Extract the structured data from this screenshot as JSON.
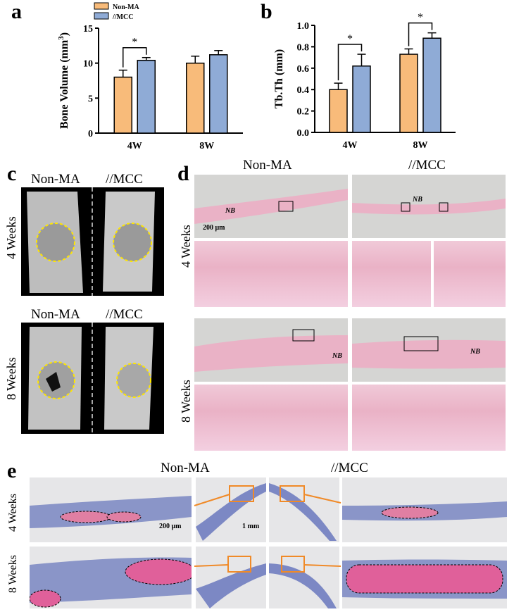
{
  "panels": {
    "a": "a",
    "b": "b",
    "c": "c",
    "d": "d",
    "e": "e"
  },
  "chart_data": [
    {
      "type": "bar",
      "panel": "a",
      "categories": [
        "4W",
        "8W"
      ],
      "series": [
        {
          "name": "Non-MA",
          "values": [
            8.0,
            10.0
          ],
          "errors": [
            1.0,
            1.0
          ],
          "color": "#f8bb7a"
        },
        {
          "name": "//MCC",
          "values": [
            10.4,
            11.2
          ],
          "errors": [
            0.4,
            0.6
          ],
          "color": "#8fabd6"
        }
      ],
      "ylabel": "Bone Volume (mm3)",
      "ylim": [
        0,
        15
      ],
      "yticks": [
        "0",
        "5",
        "10",
        "15"
      ],
      "significance": [
        {
          "label": "*",
          "category": "4W"
        }
      ],
      "legend": "top"
    },
    {
      "type": "bar",
      "panel": "b",
      "categories": [
        "4W",
        "8W"
      ],
      "series": [
        {
          "name": "Non-MA",
          "values": [
            0.4,
            0.73
          ],
          "errors": [
            0.06,
            0.05
          ],
          "color": "#f8bb7a"
        },
        {
          "name": "//MCC",
          "values": [
            0.62,
            0.88
          ],
          "errors": [
            0.11,
            0.05
          ],
          "color": "#8fabd6"
        }
      ],
      "ylabel": "Tb.Th (mm)",
      "ylim": [
        0,
        1.0
      ],
      "yticks": [
        "0.0",
        "0.2",
        "0.4",
        "0.6",
        "0.8",
        "1.0"
      ],
      "significance": [
        {
          "label": "*",
          "category": "4W"
        },
        {
          "label": "*",
          "category": "8W"
        }
      ]
    }
  ],
  "panel_c": {
    "top_left": "Non-MA",
    "top_right": "//MCC",
    "bottom_left": "Non-MA",
    "bottom_right": "//MCC",
    "row1": "4 Weeks",
    "row2": "8 Weeks"
  },
  "panel_d": {
    "col1": "Non-MA",
    "col2": "//MCC",
    "row1": "4 Weeks",
    "row2": "8 Weeks",
    "nb": "NB",
    "scale": "200 μm"
  },
  "panel_e": {
    "col1": "Non-MA",
    "col2": "//MCC",
    "row1": "4 Weeks",
    "row2": "8 Weeks",
    "scale1": "200 μm",
    "scale2": "1 mm"
  }
}
